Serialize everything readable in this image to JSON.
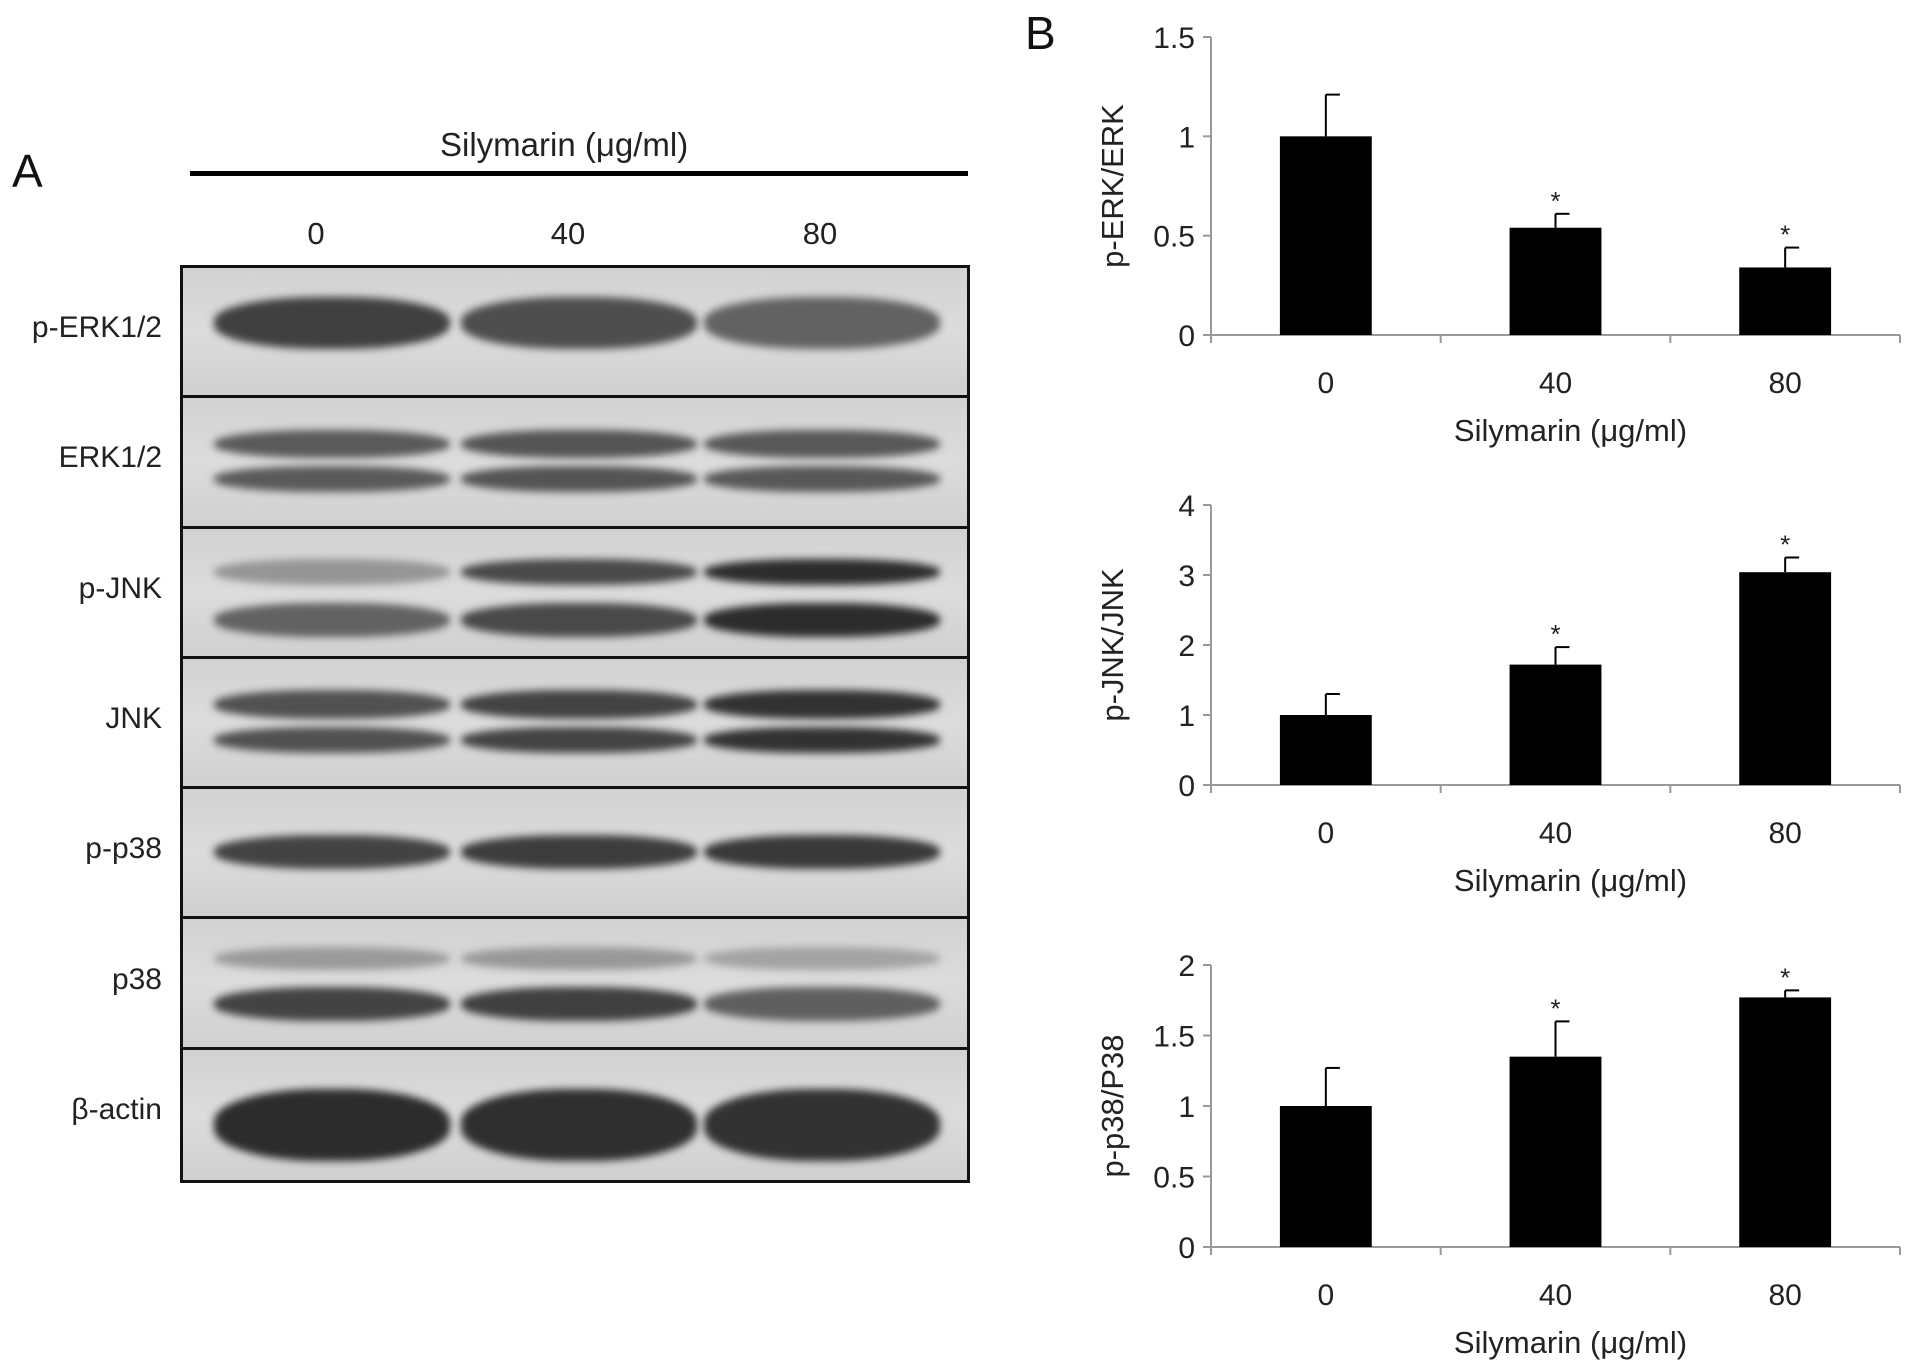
{
  "panel_a": {
    "letter": "A",
    "header": "Silymarin (μg/ml)",
    "lanes": [
      "0",
      "40",
      "80"
    ],
    "rows": [
      {
        "label": "p-ERK1/2",
        "band_strength": [
          0.8,
          0.72,
          0.6
        ],
        "band_type": "single-top"
      },
      {
        "label": "ERK1/2",
        "band_strength": [
          0.65,
          0.68,
          0.66
        ],
        "band_type": "double"
      },
      {
        "label": "p-JNK",
        "band_strength": [
          0.3,
          0.75,
          0.92
        ],
        "band_type": "pjnk"
      },
      {
        "label": "JNK",
        "band_strength": [
          0.7,
          0.78,
          0.88
        ],
        "band_type": "double"
      },
      {
        "label": "p-p38",
        "band_strength": [
          0.78,
          0.82,
          0.84
        ],
        "band_type": "single-mid"
      },
      {
        "label": "p38",
        "band_strength": [
          0.78,
          0.8,
          0.62
        ],
        "band_type": "single-low"
      },
      {
        "label": "β-actin",
        "band_strength": [
          0.92,
          0.9,
          0.88
        ],
        "band_type": "wide"
      }
    ]
  },
  "panel_b": {
    "letter": "B"
  },
  "colors": {
    "bar": "#000000",
    "axis": "#999999",
    "text": "#222222"
  },
  "chart_data": [
    {
      "type": "bar",
      "categories": [
        "0",
        "40",
        "80"
      ],
      "values": [
        1.0,
        0.54,
        0.34
      ],
      "errors": [
        0.21,
        0.07,
        0.1
      ],
      "significance": [
        "",
        "*",
        "*"
      ],
      "ylabel": "p-ERK/ERK",
      "xlabel": "Silymarin (μg/ml)",
      "ylim": [
        0,
        1.5
      ],
      "yticks": [
        "0",
        "0.5",
        "1",
        "1.5"
      ],
      "ytick_values": [
        0,
        0.5,
        1,
        1.5
      ]
    },
    {
      "type": "bar",
      "categories": [
        "0",
        "40",
        "80"
      ],
      "values": [
        1.0,
        1.72,
        3.04
      ],
      "errors": [
        0.3,
        0.25,
        0.21
      ],
      "significance": [
        "",
        "*",
        "*"
      ],
      "ylabel": "p-JNK/JNK",
      "xlabel": "Silymarin (μg/ml)",
      "ylim": [
        0,
        4
      ],
      "yticks": [
        "0",
        "1",
        "2",
        "3",
        "4"
      ],
      "ytick_values": [
        0,
        1,
        2,
        3,
        4
      ]
    },
    {
      "type": "bar",
      "categories": [
        "0",
        "40",
        "80"
      ],
      "values": [
        1.0,
        1.35,
        1.77
      ],
      "errors": [
        0.27,
        0.25,
        0.05
      ],
      "significance": [
        "",
        "*",
        "*"
      ],
      "ylabel": "p-p38/P38",
      "xlabel": "Silymarin (μg/ml)",
      "ylim": [
        0,
        2
      ],
      "yticks": [
        "0",
        "0.5",
        "1",
        "1.5",
        "2"
      ],
      "ytick_values": [
        0,
        0.5,
        1,
        1.5,
        2
      ]
    }
  ]
}
